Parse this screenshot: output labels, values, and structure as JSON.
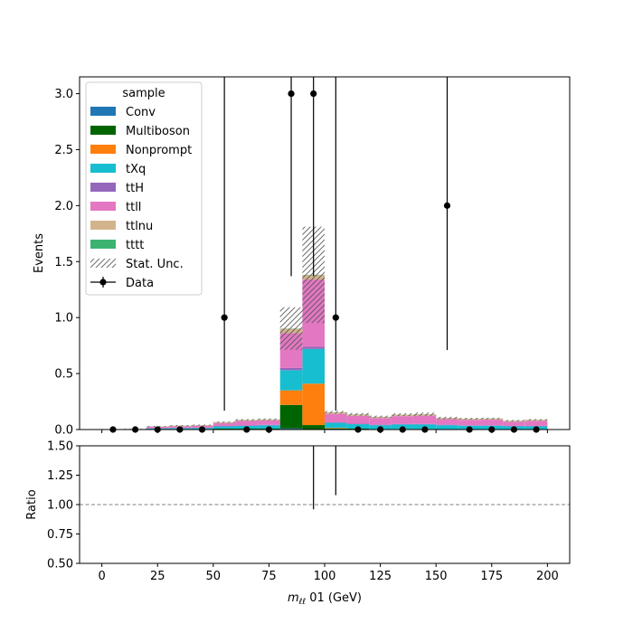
{
  "chart_data": {
    "type": "bar",
    "stacked": true,
    "x_bin_edges": [
      0,
      10,
      20,
      30,
      40,
      50,
      60,
      70,
      80,
      90,
      100,
      110,
      120,
      130,
      140,
      150,
      160,
      170,
      180,
      190,
      200
    ],
    "series": [
      {
        "name": "Conv",
        "color": "#1f77b4",
        "values": [
          0,
          0,
          0,
          0,
          0,
          0,
          0,
          0,
          0.01,
          0,
          0,
          0,
          0,
          0,
          0,
          0,
          0,
          0,
          0,
          0
        ]
      },
      {
        "name": "Multiboson",
        "color": "#006400",
        "values": [
          0,
          0.002,
          0.004,
          0.004,
          0.004,
          0.008,
          0.008,
          0.008,
          0.21,
          0.04,
          0.01,
          0.008,
          0.004,
          0.006,
          0.006,
          0.004,
          0.004,
          0.004,
          0.004,
          0.004
        ]
      },
      {
        "name": "Nonprompt",
        "color": "#ff7f0e",
        "values": [
          0,
          0,
          0,
          0,
          0,
          0,
          0,
          0,
          0.13,
          0.37,
          0.005,
          0,
          0,
          0,
          0,
          0,
          0,
          0,
          0,
          0
        ]
      },
      {
        "name": "tXq",
        "color": "#17becf",
        "values": [
          0,
          0.002,
          0.006,
          0.008,
          0.01,
          0.02,
          0.025,
          0.03,
          0.18,
          0.31,
          0.045,
          0.04,
          0.035,
          0.04,
          0.04,
          0.035,
          0.03,
          0.03,
          0.025,
          0.025
        ]
      },
      {
        "name": "ttH",
        "color": "#9467bd",
        "values": [
          0,
          0,
          0.002,
          0.002,
          0.002,
          0.004,
          0.004,
          0.004,
          0.02,
          0.02,
          0.004,
          0.004,
          0.004,
          0.004,
          0.004,
          0.004,
          0.004,
          0.004,
          0.004,
          0.004
        ]
      },
      {
        "name": "ttll",
        "color": "#e377c2",
        "values": [
          0,
          0.001,
          0.012,
          0.015,
          0.018,
          0.026,
          0.04,
          0.04,
          0.31,
          0.6,
          0.076,
          0.07,
          0.06,
          0.07,
          0.074,
          0.05,
          0.048,
          0.05,
          0.037,
          0.045
        ]
      },
      {
        "name": "ttlnu",
        "color": "#d2b48c",
        "values": [
          0,
          0,
          0.003,
          0.005,
          0.005,
          0.007,
          0.008,
          0.008,
          0.04,
          0.04,
          0.013,
          0.013,
          0.01,
          0.012,
          0.012,
          0.01,
          0.01,
          0.009,
          0.008,
          0.008
        ]
      },
      {
        "name": "tttt",
        "color": "#3cb371",
        "values": [
          0,
          0,
          0.001,
          0.001,
          0.001,
          0.001,
          0.001,
          0.001,
          0.002,
          0.002,
          0.001,
          0.001,
          0.001,
          0.001,
          0.001,
          0.001,
          0.001,
          0.001,
          0.001,
          0.001
        ]
      }
    ],
    "stat_unc": {
      "name": "Stat. Unc.",
      "totals": [
        0,
        0.005,
        0.028,
        0.035,
        0.04,
        0.066,
        0.086,
        0.091,
        0.902,
        1.382,
        0.154,
        0.136,
        0.114,
        0.133,
        0.137,
        0.104,
        0.097,
        0.098,
        0.079,
        0.087
      ],
      "errors": [
        0,
        0.002,
        0.004,
        0.005,
        0.005,
        0.006,
        0.007,
        0.008,
        0.19,
        0.43,
        0.012,
        0.012,
        0.01,
        0.012,
        0.015,
        0.01,
        0.008,
        0.008,
        0.007,
        0.007
      ]
    },
    "data": {
      "name": "Data",
      "x": [
        5,
        15,
        25,
        35,
        45,
        55,
        65,
        75,
        85,
        95,
        105,
        115,
        125,
        135,
        145,
        155,
        165,
        175,
        185,
        195
      ],
      "y": [
        0,
        0,
        0,
        0,
        0,
        1,
        0,
        0,
        3,
        3,
        1,
        0,
        0,
        0,
        0,
        2,
        0,
        0,
        0,
        0
      ],
      "err_low": [
        0,
        0,
        0,
        0,
        0,
        0.83,
        0,
        0,
        1.63,
        1.63,
        0.83,
        0,
        0,
        0,
        0,
        1.29,
        0,
        0,
        0,
        0
      ],
      "err_high": [
        0,
        0,
        0,
        0,
        0,
        2.3,
        0,
        0,
        2.92,
        2.92,
        2.3,
        0,
        0,
        0,
        0,
        2.64,
        0,
        0,
        0,
        0
      ]
    },
    "ratio": {
      "ylabel": "Ratio",
      "ylim": [
        0.5,
        1.5
      ],
      "yticks": [
        "0.50",
        "0.75",
        "1.00",
        "1.25",
        "1.50"
      ],
      "reference_line": 1.0,
      "segments": [
        {
          "x": 95,
          "low": 0.96,
          "high": 1.5
        },
        {
          "x": 105,
          "low": 1.08,
          "high": 1.5
        }
      ]
    },
    "xlabel": "m",
    "xlabel_sub": "ℓℓ",
    "xlabel_suffix": " 01 (GeV)",
    "ylabel": "Events",
    "xlim": [
      -10,
      210
    ],
    "ylim": [
      0,
      3.15
    ],
    "xticks": [
      "0",
      "25",
      "50",
      "75",
      "100",
      "125",
      "150",
      "175",
      "200"
    ],
    "yticks": [
      "0.0",
      "0.5",
      "1.0",
      "1.5",
      "2.0",
      "2.5",
      "3.0"
    ],
    "legend": {
      "title": "sample",
      "location": "top-left"
    },
    "grid": false
  }
}
